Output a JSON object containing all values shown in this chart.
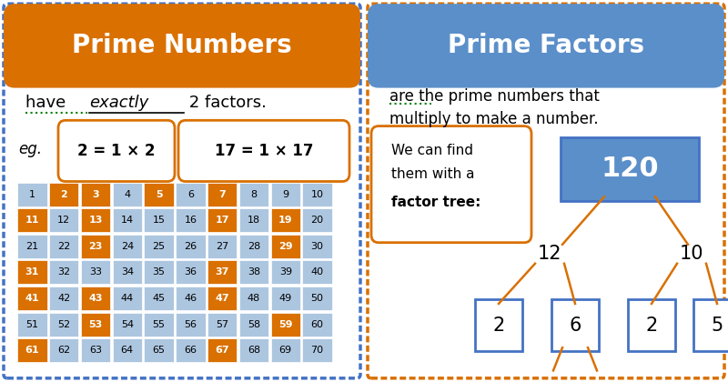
{
  "bg_color": "#ffffff",
  "orange": "#d97000",
  "blue_header": "#5b8fc9",
  "light_blue_cell": "#adc6e0",
  "prime_numbers": [
    2,
    3,
    5,
    7,
    11,
    13,
    17,
    19,
    23,
    29,
    31,
    37,
    41,
    43,
    47,
    53,
    59,
    61,
    67
  ],
  "grid_numbers": [
    [
      1,
      2,
      3,
      4,
      5,
      6,
      7,
      8,
      9,
      10
    ],
    [
      11,
      12,
      13,
      14,
      15,
      16,
      17,
      18,
      19,
      20
    ],
    [
      21,
      22,
      23,
      24,
      25,
      26,
      27,
      28,
      29,
      30
    ],
    [
      31,
      32,
      33,
      34,
      35,
      36,
      37,
      38,
      39,
      40
    ],
    [
      41,
      42,
      43,
      44,
      45,
      46,
      47,
      48,
      49,
      50
    ],
    [
      51,
      52,
      53,
      54,
      55,
      56,
      57,
      58,
      59,
      60
    ],
    [
      61,
      62,
      63,
      64,
      65,
      66,
      67,
      68,
      69,
      70
    ]
  ],
  "left_title": "Prime Numbers",
  "right_title": "Prime Factors",
  "subtitle_right_line1": "are the prime numbers that",
  "subtitle_right_line2": "multiply to make a number.",
  "eg_text": "eg.",
  "box1_text": "2 = 1 × 2",
  "box2_text": "17 = 1 × 17",
  "factor_tree_note1": "We can find",
  "factor_tree_note2": "them with a",
  "factor_tree_note3_plain": "factor tree:",
  "root_value": "120",
  "left_child": "12",
  "right_child": "10",
  "ll_child": "2",
  "lr_child": "6",
  "rl_child": "2",
  "rr_child": "5",
  "border_blue": "#4472c4"
}
